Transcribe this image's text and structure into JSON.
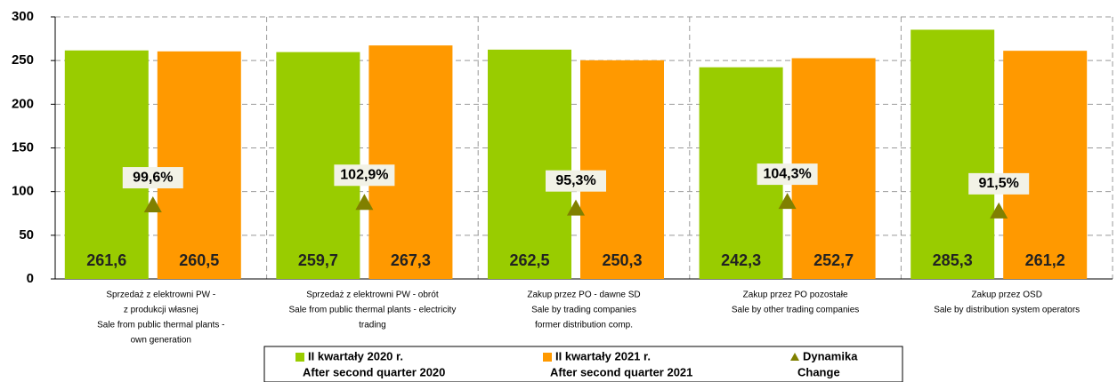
{
  "chart_data": {
    "type": "bar",
    "categories": [
      [
        "Sprzedaż z elektrowni PW -",
        "z produkcji własnej",
        "Sale from public thermal plants -",
        "own generation"
      ],
      [
        "Sprzedaż z elektrowni PW - obrót",
        "Sale from public thermal plants - electricity",
        "trading"
      ],
      [
        "Zakup przez PO - dawne SD",
        "Sale by trading companies",
        "former distribution comp."
      ],
      [
        "Zakup przez PO pozostałe",
        "Sale by other trading companies"
      ],
      [
        "Zakup przez OSD",
        "Sale by distribution system operators"
      ]
    ],
    "series": [
      {
        "name": [
          "II kwartały 2020 r.",
          "After  second quarter 2020"
        ],
        "color": "#99cc00",
        "values": [
          261.6,
          259.7,
          262.5,
          242.3,
          285.3
        ],
        "value_labels": [
          "261,6",
          "259,7",
          "262,5",
          "242,3",
          "285,3"
        ]
      },
      {
        "name": [
          "II kwartały 2021 r.",
          "After  second quarter 2021"
        ],
        "color": "#ff9900",
        "values": [
          260.5,
          267.3,
          250.3,
          252.7,
          261.2
        ],
        "value_labels": [
          "260,5",
          "267,3",
          "250,3",
          "252,7",
          "261,2"
        ]
      },
      {
        "name": [
          "Dynamika",
          "Change"
        ],
        "color": "#808000",
        "type": "scatter",
        "axis": "y2",
        "values": [
          99.6,
          102.9,
          95.3,
          104.3,
          91.5
        ],
        "value_labels": [
          "99,6%",
          "102,9%",
          "95,3%",
          "104,3%",
          "91,5%"
        ]
      }
    ],
    "ylim": [
      0,
      300
    ],
    "yticks": [
      0,
      50,
      100,
      150,
      200,
      250,
      300
    ],
    "y2lim": [
      0,
      350
    ],
    "grid": true
  }
}
